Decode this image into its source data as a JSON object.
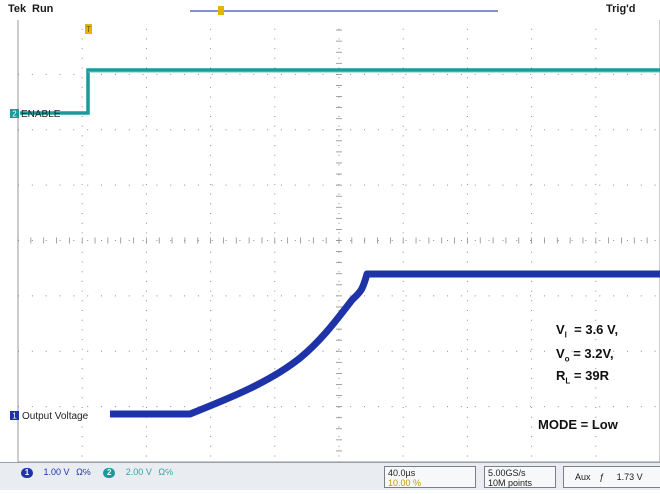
{
  "header": {
    "brand": "Tek",
    "state": "Run",
    "trigger_status": "Trig'd",
    "trigger_marker": "T"
  },
  "channels": [
    {
      "number": "2",
      "label": "ENABLE",
      "color": "#1a9a9a"
    },
    {
      "number": "1",
      "label": "Output Voltage",
      "color": "#1f33a8"
    }
  ],
  "annotations": {
    "vi": {
      "sym": "V",
      "sub": "I",
      "rest": "= 3.6 V,"
    },
    "vo": {
      "sym": "V",
      "sub": "o",
      "rest": "= 3.2V,"
    },
    "rl": {
      "sym": "R",
      "sub": "L",
      "rest": "= 39R"
    },
    "mode": "MODE = Low"
  },
  "bottom": {
    "ch1_num": "1",
    "ch1_scale": "1.00 V",
    "ch1_icons": "Ω℅",
    "ch2_num": "2",
    "ch2_scale": "2.00 V",
    "ch2_icons": "Ω℅",
    "timebase": "40.0µs",
    "trigger_pos": "10.00 %",
    "sample_rate": "5.00GS/s",
    "record_length": "10M points",
    "trigger_source": "Aux",
    "trigger_slope": "ƒ",
    "trigger_level": "1.73 V"
  },
  "colors": {
    "enable_trace": "#1a9a9a",
    "output_trace": "#1f33a8",
    "grid": "#8c8c8c",
    "background": "#ffffff"
  }
}
